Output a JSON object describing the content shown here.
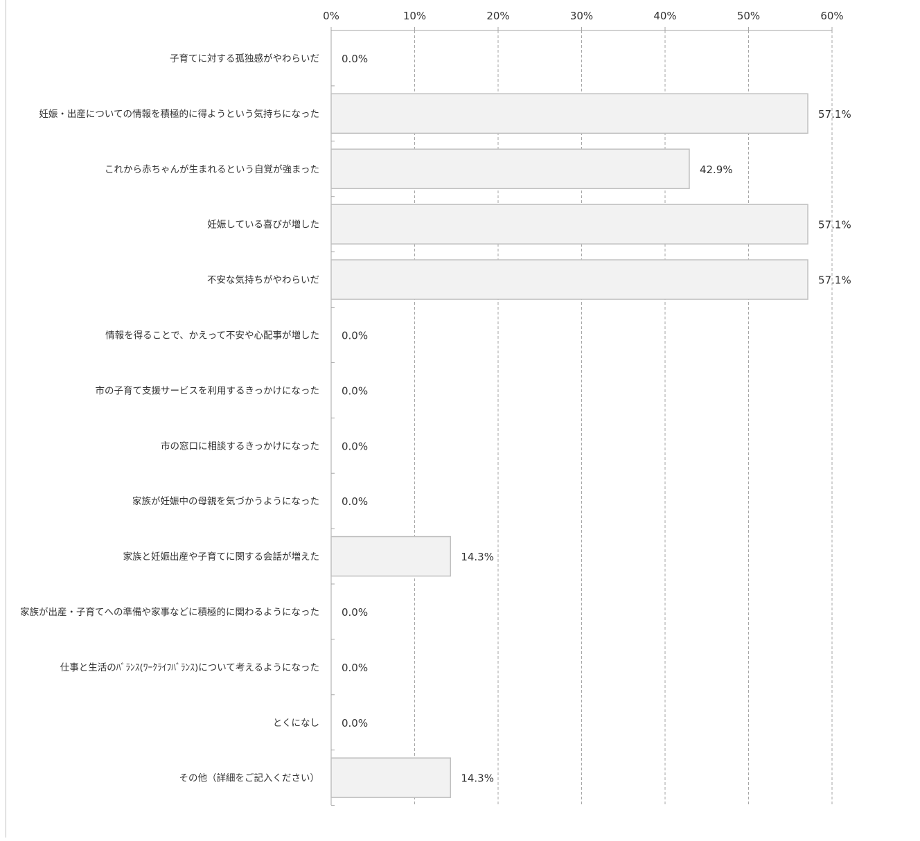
{
  "chart_data": {
    "type": "bar",
    "orientation": "horizontal",
    "categories": [
      "子育てに対する孤独感がやわらいだ",
      "妊娠・出産についての情報を積極的に得ようという気持ちになった",
      "これから赤ちゃんが生まれるという自覚が強まった",
      "妊娠している喜びが増した",
      "不安な気持ちがやわらいだ",
      "情報を得ることで、かえって不安や心配事が増した",
      "市の子育て支援サービスを利用するきっかけになった",
      "市の窓口に相談するきっかけになった",
      "家族が妊娠中の母親を気づかうようになった",
      "家族と妊娠出産や子育てに関する会話が増えた",
      "家族が出産・子育てへの準備や家事などに積極的に関わるようになった",
      "仕事と生活のﾊﾞﾗﾝｽ(ﾜｰｸﾗｲﾌﾊﾞﾗﾝｽ)について考えるようになった",
      "とくになし",
      "その他（詳細をご記入ください）"
    ],
    "values": [
      0.0,
      57.1,
      42.9,
      57.1,
      57.1,
      0.0,
      0.0,
      0.0,
      0.0,
      14.3,
      0.0,
      0.0,
      0.0,
      14.3
    ],
    "value_labels": [
      "0.0%",
      "57.1%",
      "42.9%",
      "57.1%",
      "57.1%",
      "0.0%",
      "0.0%",
      "0.0%",
      "0.0%",
      "14.3%",
      "0.0%",
      "0.0%",
      "0.0%",
      "14.3%"
    ],
    "x_ticks": [
      0,
      10,
      20,
      30,
      40,
      50,
      60
    ],
    "x_tick_labels": [
      "0%",
      "10%",
      "20%",
      "30%",
      "40%",
      "50%",
      "60%"
    ],
    "xlim": [
      0,
      60
    ],
    "x_axis_position": "top",
    "grid": "vertical dashed",
    "legend": "none",
    "colors": {
      "bar_fill": "#f2f2f2",
      "bar_stroke": "#bfbfbf",
      "grid": "#a6a6a6",
      "axis": "#a6a6a6",
      "text": "#333333"
    }
  }
}
